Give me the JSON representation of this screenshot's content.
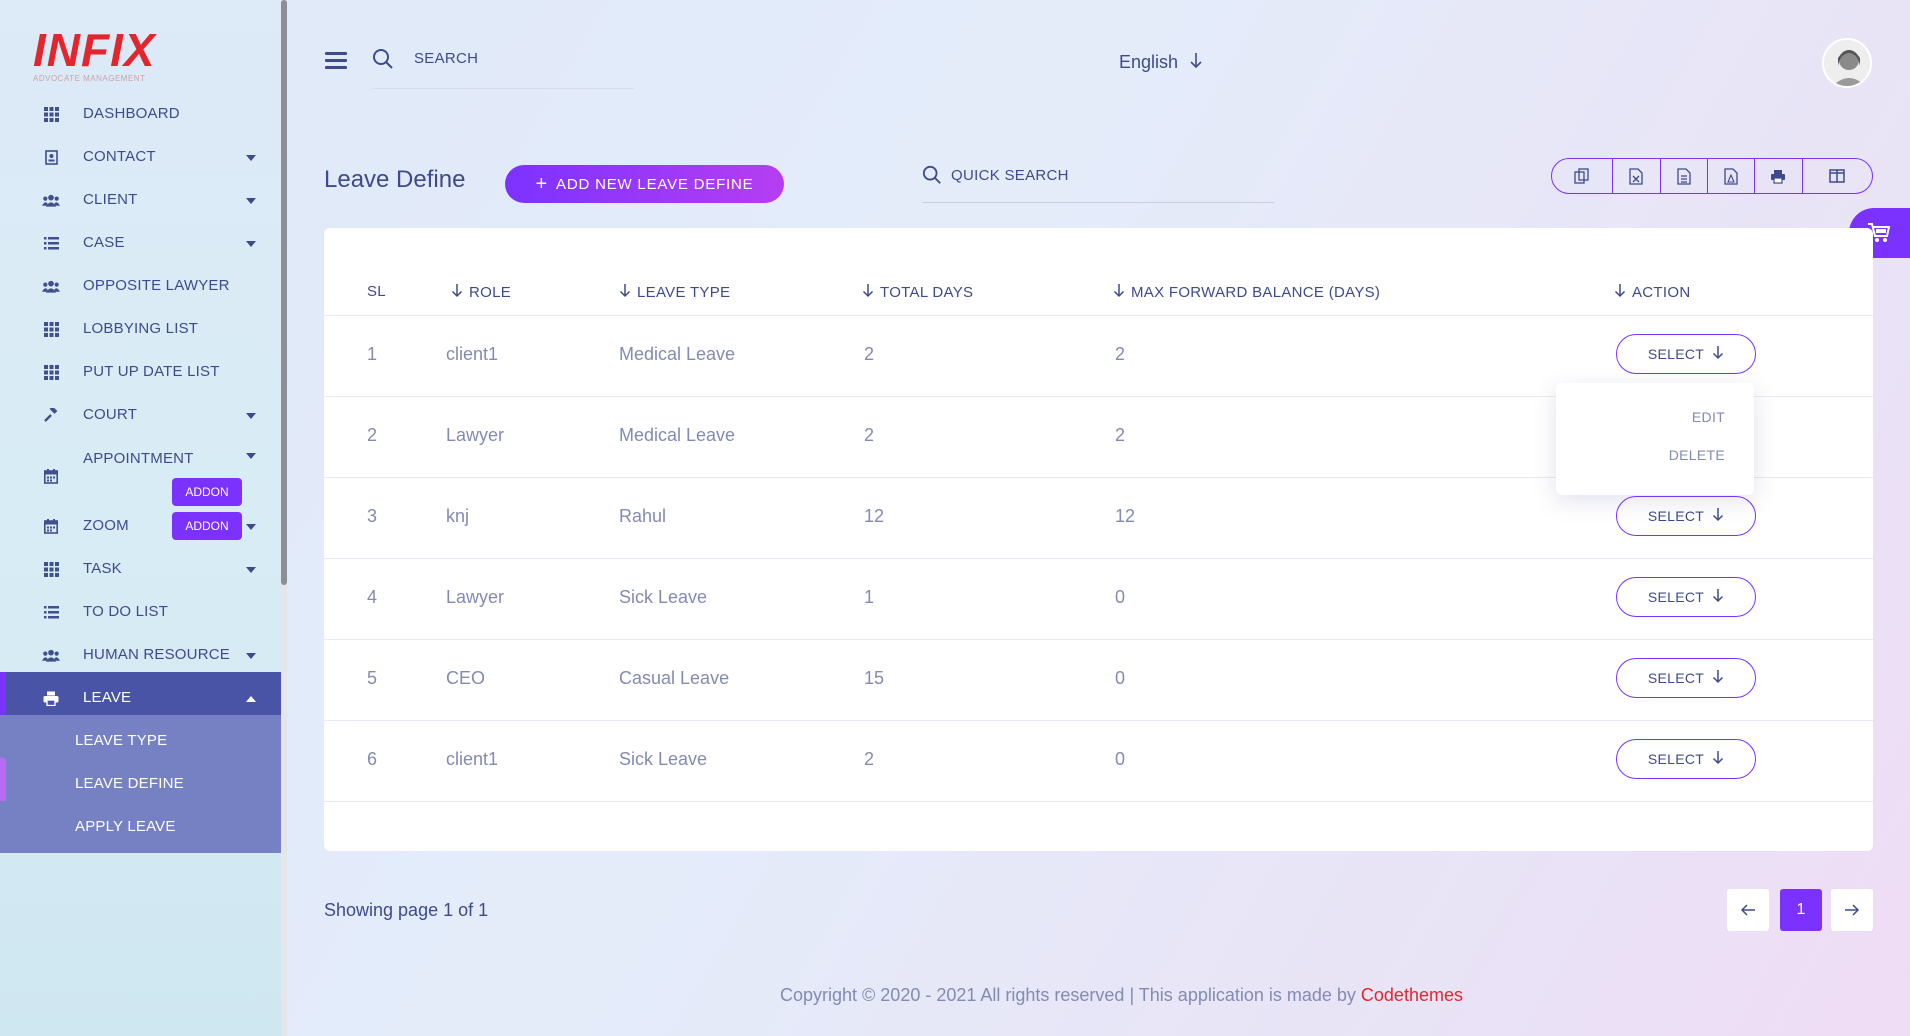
{
  "brand": {
    "logo": "INFIX",
    "tagline": "ADVOCATE MANAGEMENT"
  },
  "sidebar": {
    "items": [
      {
        "label": "DASHBOARD",
        "icon": "grid-icon",
        "caret": false
      },
      {
        "label": "CONTACT",
        "icon": "contact-icon",
        "caret": true
      },
      {
        "label": "CLIENT",
        "icon": "users-icon",
        "caret": true
      },
      {
        "label": "CASE",
        "icon": "list-icon",
        "caret": true
      },
      {
        "label": "OPPOSITE LAWYER",
        "icon": "users-icon",
        "caret": false
      },
      {
        "label": "LOBBYING LIST",
        "icon": "grid-icon",
        "caret": false
      },
      {
        "label": "PUT UP DATE LIST",
        "icon": "grid-icon",
        "caret": false
      },
      {
        "label": "COURT",
        "icon": "gavel-icon",
        "caret": true
      },
      {
        "label": "APPOINTMENT",
        "icon": "calendar-icon",
        "caret": true,
        "badge": "ADDON"
      },
      {
        "label": "ZOOM",
        "icon": "calendar-icon",
        "caret": true,
        "badge": "ADDON"
      },
      {
        "label": "TASK",
        "icon": "grid-icon",
        "caret": true
      },
      {
        "label": "TO DO LIST",
        "icon": "list-icon",
        "caret": false
      },
      {
        "label": "HUMAN RESOURCE",
        "icon": "users-icon",
        "caret": true
      },
      {
        "label": "LEAVE",
        "icon": "print-icon",
        "caret": true,
        "active": true
      }
    ],
    "sub_items": [
      "LEAVE TYPE",
      "LEAVE DEFINE",
      "APPLY LEAVE"
    ]
  },
  "topbar": {
    "search_label": "SEARCH",
    "language": "English"
  },
  "page": {
    "title": "Leave Define",
    "add_button": "ADD NEW LEAVE DEFINE",
    "quick_search": "QUICK SEARCH",
    "tools": [
      "copy-icon",
      "excel-icon",
      "csv-icon",
      "pdf-icon",
      "print-icon",
      "columns-icon"
    ]
  },
  "table": {
    "headers": [
      "SL",
      "ROLE",
      "LEAVE TYPE",
      "TOTAL DAYS",
      "MAX FORWARD BALANCE (DAYS)",
      "ACTION"
    ],
    "rows": [
      {
        "sl": "1",
        "role": "client1",
        "leave_type": "Medical Leave",
        "total_days": "2",
        "max_forward": "2"
      },
      {
        "sl": "2",
        "role": "Lawyer",
        "leave_type": "Medical Leave",
        "total_days": "2",
        "max_forward": "2"
      },
      {
        "sl": "3",
        "role": "knj",
        "leave_type": "Rahul",
        "total_days": "12",
        "max_forward": "12"
      },
      {
        "sl": "4",
        "role": "Lawyer",
        "leave_type": "Sick Leave",
        "total_days": "1",
        "max_forward": "0"
      },
      {
        "sl": "5",
        "role": "CEO",
        "leave_type": "Casual Leave",
        "total_days": "15",
        "max_forward": "0"
      },
      {
        "sl": "6",
        "role": "client1",
        "leave_type": "Sick Leave",
        "total_days": "2",
        "max_forward": "0"
      }
    ],
    "select_label": "SELECT",
    "dropdown": [
      "EDIT",
      "DELETE"
    ]
  },
  "pagination": {
    "showing": "Showing page 1 of 1",
    "current": "1"
  },
  "footer": {
    "text": "Copyright © 2020 - 2021 All rights reserved | This application is made by ",
    "brand": "Codethemes"
  }
}
